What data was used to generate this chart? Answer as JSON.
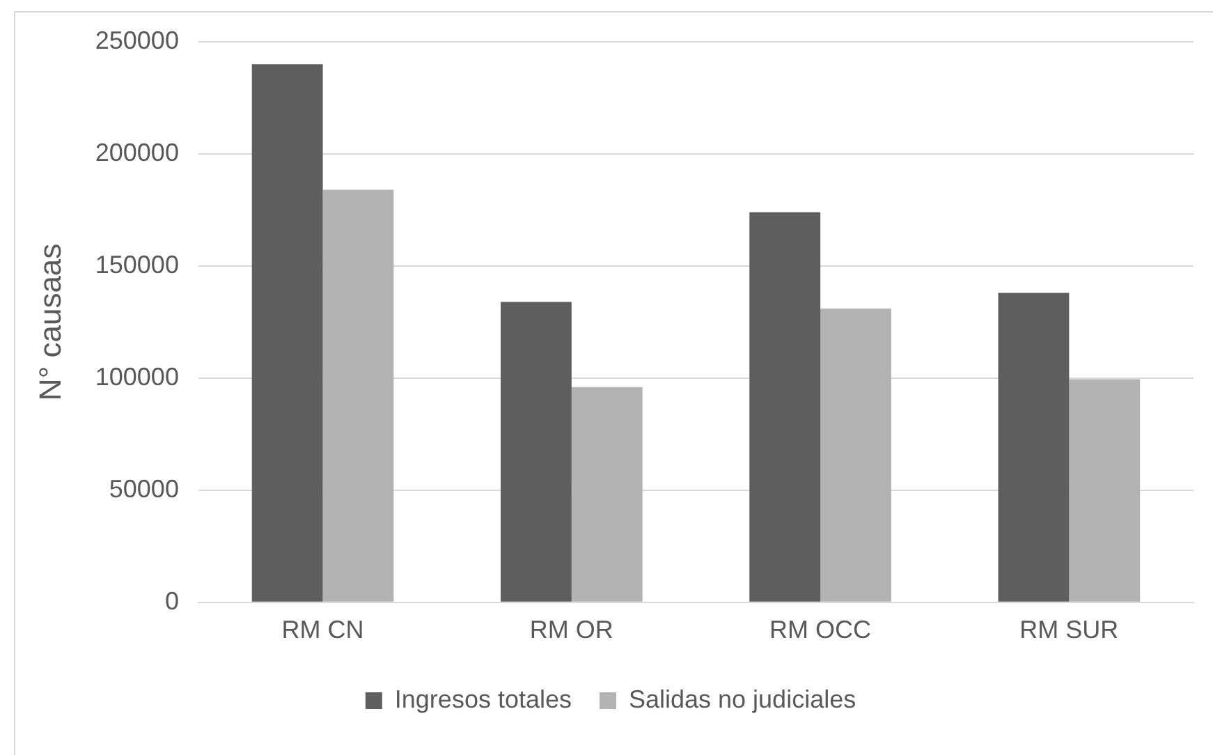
{
  "chart_data": {
    "type": "bar",
    "ylabel": "N° causaas",
    "categories": [
      "RM CN",
      "RM OR",
      "RM OCC",
      "RM SUR"
    ],
    "series": [
      {
        "name": "Ingresos totales",
        "color": "#5e5e5e",
        "values": [
          240000,
          134000,
          174000,
          138000
        ]
      },
      {
        "name": "Salidas no judiciales",
        "color": "#b3b3b3",
        "values": [
          184000,
          96000,
          131000,
          99500
        ]
      }
    ],
    "ylim": [
      0,
      250000
    ],
    "yticks": [
      0,
      50000,
      100000,
      150000,
      200000,
      250000
    ],
    "grid": "y",
    "legend": "bottom"
  }
}
